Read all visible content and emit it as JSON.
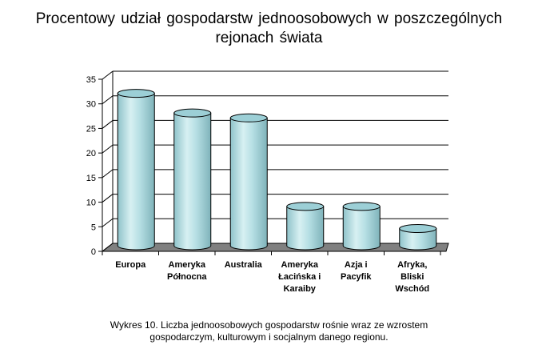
{
  "title_line1": "Procentowy  udział  gospodarstw  jednoosobowych  w poszczególnych",
  "title_line2": "rejonach  świata",
  "caption_line1": "Wykres 10. Liczba jednoosobowych gospodarstw rośnie wraz ze wzrostem",
  "caption_line2": "gospodarczym, kulturowym i socjalnym  danego regionu.",
  "colors": {
    "bar_fill": "#b6dfe4",
    "bar_top": "#9ccfd6",
    "floor": "#808080",
    "grid": "#000000"
  },
  "chart_data": {
    "type": "bar",
    "style": "3d-cylinder",
    "categories": [
      [
        "Europa"
      ],
      [
        "Ameryka",
        "Północna"
      ],
      [
        "Australia"
      ],
      [
        "Ameryka",
        "Łacińska i",
        "Karaiby"
      ],
      [
        "Azja i",
        "Pacyfik"
      ],
      [
        "Afryka,",
        "Bliski",
        "Wschód"
      ]
    ],
    "values": [
      31,
      27,
      26,
      8,
      8,
      3.5
    ],
    "ylim": [
      0,
      35
    ],
    "yticks": [
      0,
      5,
      10,
      15,
      20,
      25,
      30,
      35
    ],
    "grid": true,
    "legend": "none"
  }
}
